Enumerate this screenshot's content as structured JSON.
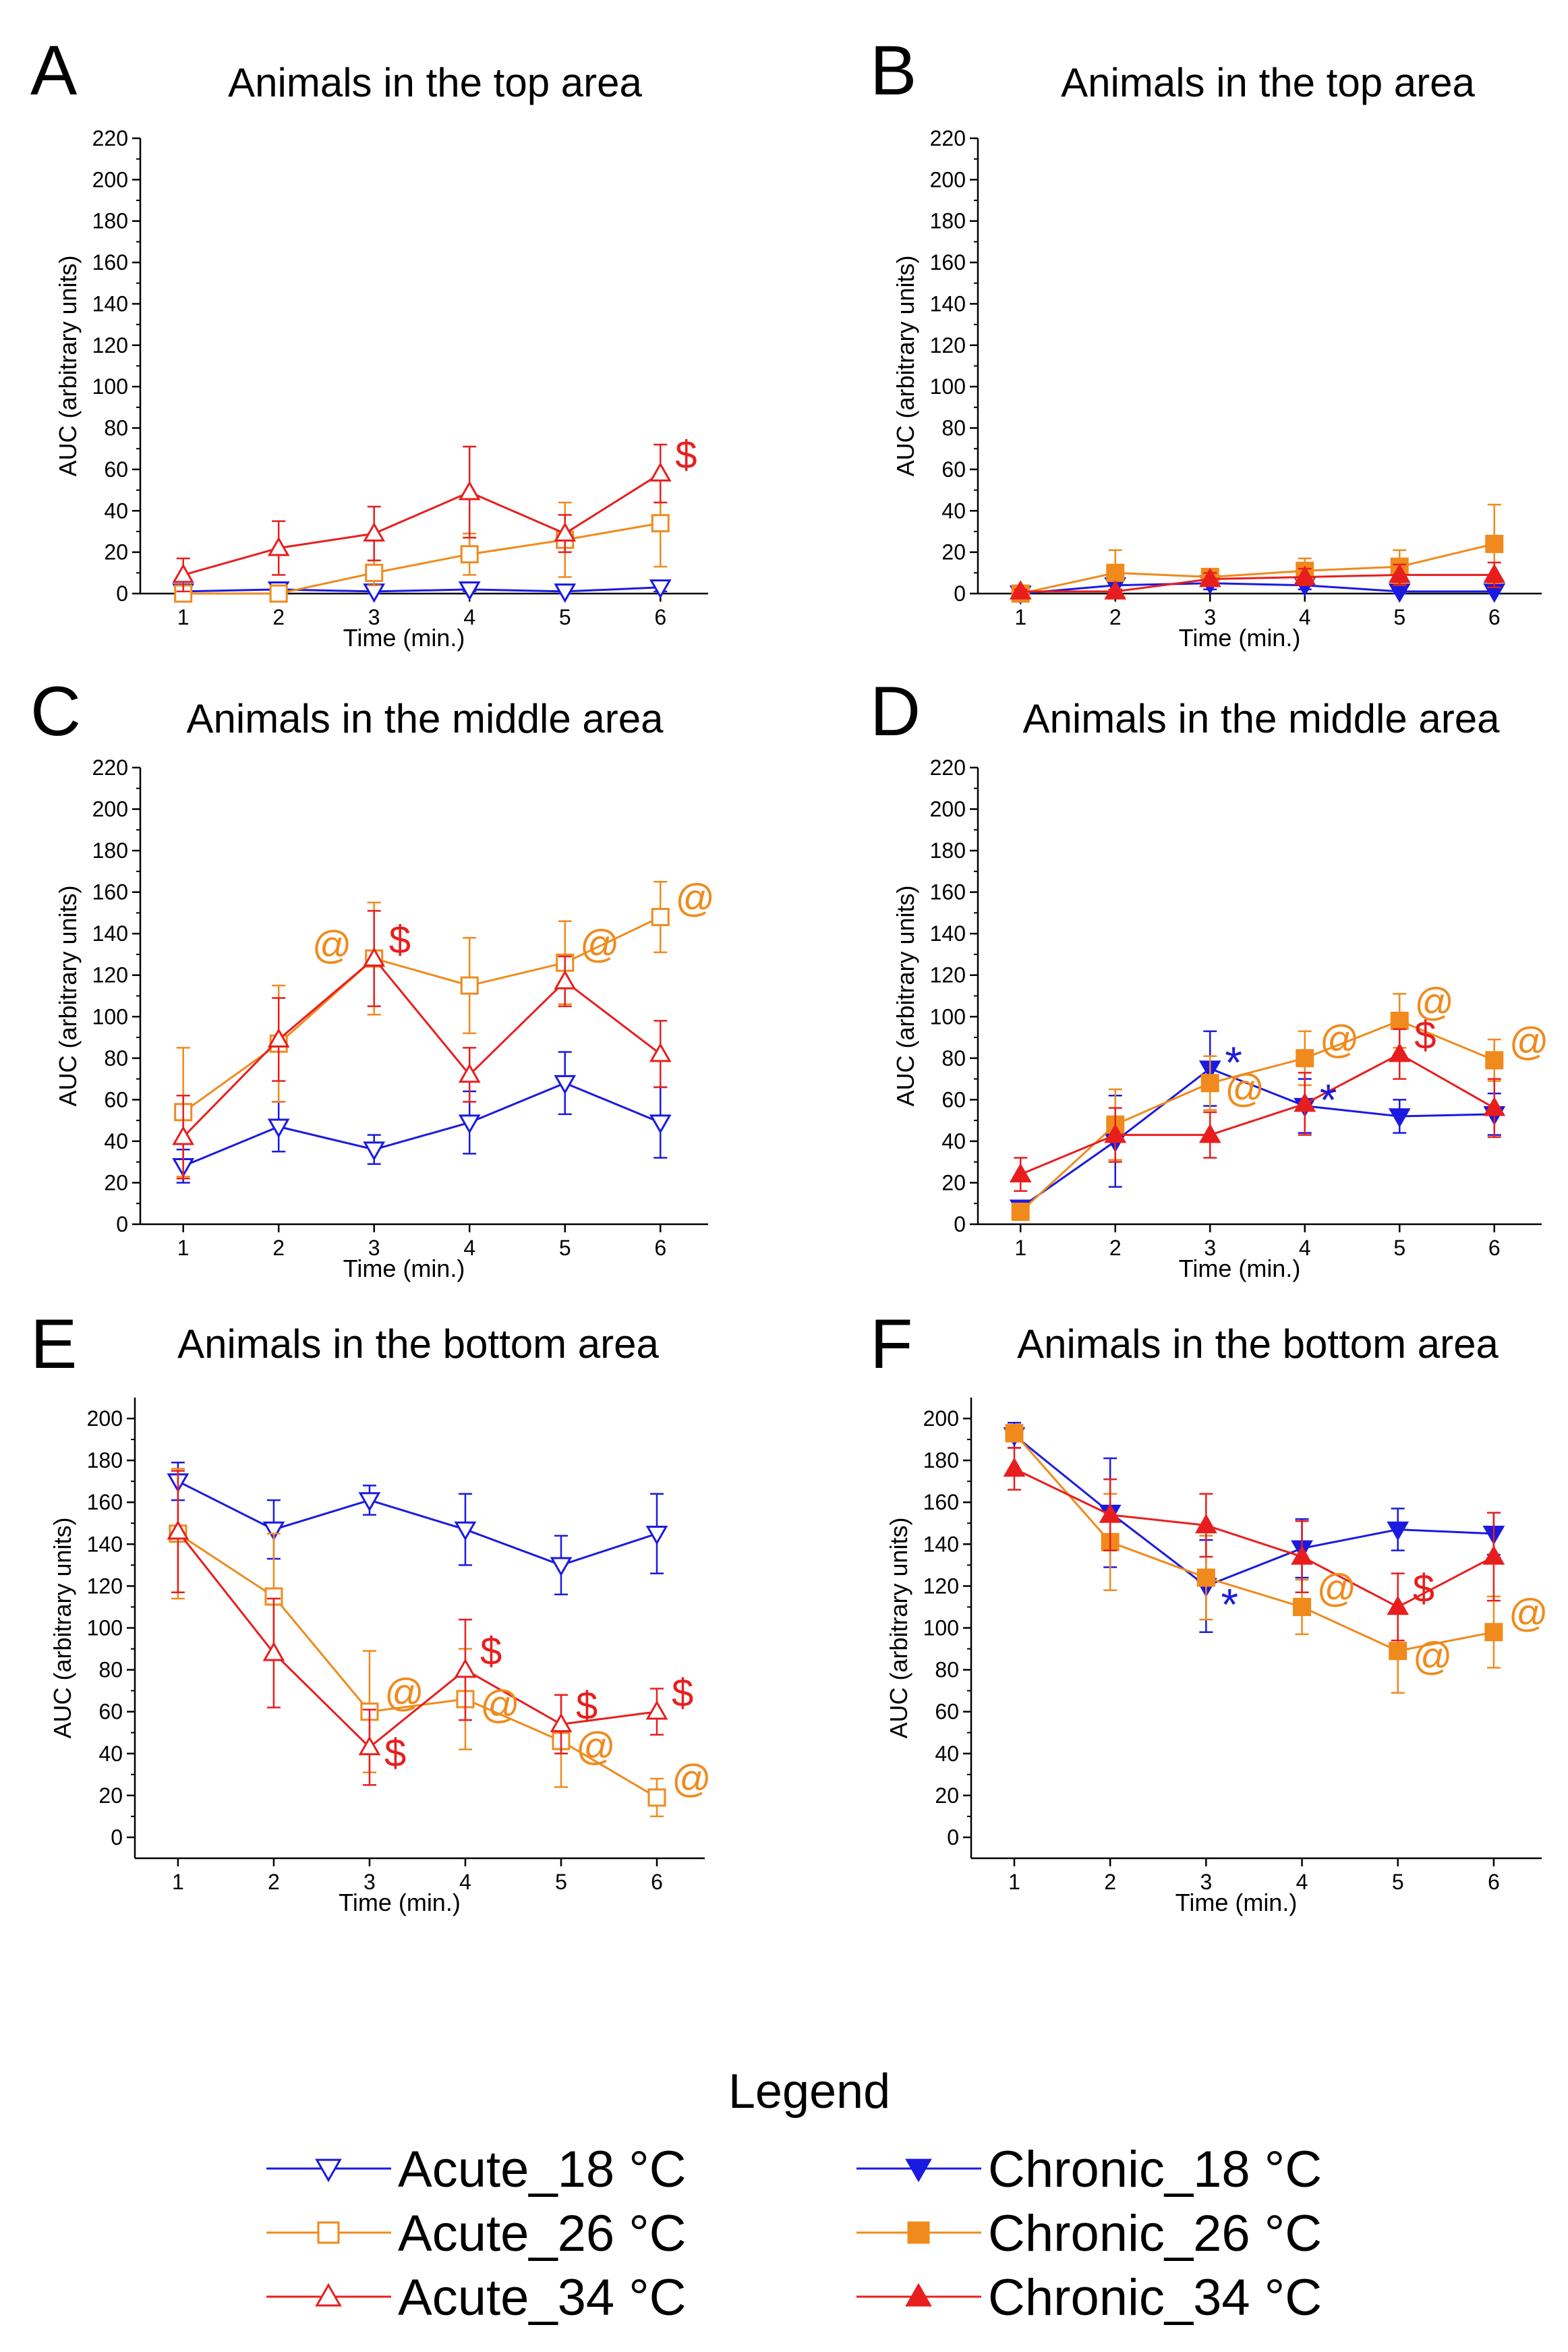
{
  "colors": {
    "18C": "#1a1ae0",
    "26C": "#f08a1c",
    "34C": "#e81e1e"
  },
  "legend": {
    "title": "Legend",
    "items": [
      {
        "label": "Acute_18 °C",
        "temp": "18C",
        "marker": "triangle-down",
        "filled": false
      },
      {
        "label": "Acute_26 °C",
        "temp": "26C",
        "marker": "square",
        "filled": false
      },
      {
        "label": "Acute_34 °C",
        "temp": "34C",
        "marker": "triangle-up",
        "filled": false
      },
      {
        "label": "Chronic_18 °C",
        "temp": "18C",
        "marker": "triangle-down",
        "filled": true
      },
      {
        "label": "Chronic_26 °C",
        "temp": "26C",
        "marker": "square",
        "filled": true
      },
      {
        "label": "Chronic_34 °C",
        "temp": "34C",
        "marker": "triangle-up",
        "filled": true
      }
    ]
  },
  "chart_data": [
    {
      "id": "A",
      "type": "line",
      "title": "Animals in the top area",
      "xlabel": "Time (min.)",
      "ylabel": "AUC (arbitrary units)",
      "x": [
        1,
        2,
        3,
        4,
        5,
        6
      ],
      "ylim": [
        0,
        220
      ],
      "yticks": [
        0,
        20,
        40,
        60,
        80,
        100,
        120,
        140,
        160,
        180,
        200,
        220
      ],
      "series": [
        {
          "name": "Acute_18 °C",
          "temp": "18C",
          "marker": "triangle-down",
          "filled": false,
          "values": [
            1,
            2,
            1,
            2,
            1,
            3
          ],
          "err": [
            1,
            1,
            1,
            1,
            1,
            2
          ]
        },
        {
          "name": "Acute_26 °C",
          "temp": "26C",
          "marker": "square",
          "filled": false,
          "values": [
            0,
            0,
            10,
            19,
            26,
            34
          ],
          "err": [
            1,
            1,
            6,
            10,
            18,
            21
          ]
        },
        {
          "name": "Acute_34 °C",
          "temp": "34C",
          "marker": "triangle-up",
          "filled": false,
          "values": [
            9,
            22,
            29,
            49,
            29,
            58
          ],
          "err": [
            8,
            13,
            13,
            22,
            9,
            14
          ]
        }
      ],
      "annotations": [
        {
          "x": 6,
          "y": 58,
          "text": "$",
          "temp": "34C",
          "dir": "right"
        }
      ]
    },
    {
      "id": "B",
      "type": "line",
      "title": "Animals in the top area",
      "xlabel": "Time (min.)",
      "ylabel": "AUC (arbitrary units)",
      "x": [
        1,
        2,
        3,
        4,
        5,
        6
      ],
      "ylim": [
        0,
        220
      ],
      "yticks": [
        0,
        20,
        40,
        60,
        80,
        100,
        120,
        140,
        160,
        180,
        200,
        220
      ],
      "series": [
        {
          "name": "Chronic_18 °C",
          "temp": "18C",
          "marker": "triangle-down",
          "filled": true,
          "values": [
            0,
            4,
            5,
            4,
            1,
            1
          ],
          "err": [
            1,
            2,
            3,
            2,
            1,
            1
          ]
        },
        {
          "name": "Chronic_26 °C",
          "temp": "26C",
          "marker": "square",
          "filled": true,
          "values": [
            0,
            10,
            8,
            11,
            13,
            24
          ],
          "err": [
            1,
            11,
            4,
            6,
            8,
            19
          ]
        },
        {
          "name": "Chronic_34 °C",
          "temp": "34C",
          "marker": "triangle-up",
          "filled": true,
          "values": [
            1,
            1,
            7,
            8,
            9,
            9
          ],
          "err": [
            1,
            1,
            3,
            4,
            5,
            6
          ]
        }
      ],
      "annotations": []
    },
    {
      "id": "C",
      "type": "line",
      "title": "Animals in the middle area",
      "xlabel": "Time (min.)",
      "ylabel": "AUC (arbitrary units)",
      "x": [
        1,
        2,
        3,
        4,
        5,
        6
      ],
      "ylim": [
        0,
        220
      ],
      "yticks": [
        0,
        20,
        40,
        60,
        80,
        100,
        120,
        140,
        160,
        180,
        200,
        220
      ],
      "series": [
        {
          "name": "Acute_18 °C",
          "temp": "18C",
          "marker": "triangle-down",
          "filled": false,
          "values": [
            28,
            47,
            36,
            49,
            68,
            49
          ],
          "err": [
            8,
            12,
            7,
            15,
            15,
            17
          ]
        },
        {
          "name": "Acute_26 °C",
          "temp": "26C",
          "marker": "square",
          "filled": false,
          "values": [
            54,
            87,
            128,
            115,
            126,
            148
          ],
          "err": [
            31,
            28,
            27,
            23,
            20,
            17
          ]
        },
        {
          "name": "Acute_34 °C",
          "temp": "34C",
          "marker": "triangle-up",
          "filled": false,
          "values": [
            42,
            89,
            128,
            72,
            117,
            82
          ],
          "err": [
            20,
            20,
            23,
            13,
            12,
            16
          ]
        }
      ],
      "annotations": [
        {
          "x": 3,
          "y": 128,
          "text": "@",
          "temp": "26C",
          "dir": "left"
        },
        {
          "x": 3,
          "y": 128,
          "text": "$",
          "temp": "34C",
          "dir": "right"
        },
        {
          "x": 5,
          "y": 126,
          "text": "@",
          "temp": "26C",
          "dir": "right"
        },
        {
          "x": 6,
          "y": 148,
          "text": "@",
          "temp": "26C",
          "dir": "right"
        }
      ]
    },
    {
      "id": "D",
      "type": "line",
      "title": "Animals in the middle area",
      "xlabel": "Time (min.)",
      "ylabel": "AUC (arbitrary units)",
      "x": [
        1,
        2,
        3,
        4,
        5,
        6
      ],
      "ylim": [
        0,
        220
      ],
      "yticks": [
        0,
        20,
        40,
        60,
        80,
        100,
        120,
        140,
        160,
        180,
        200,
        220
      ],
      "series": [
        {
          "name": "Chronic_18 °C",
          "temp": "18C",
          "marker": "triangle-down",
          "filled": true,
          "values": [
            8,
            40,
            75,
            57,
            52,
            53
          ],
          "err": [
            3,
            22,
            18,
            13,
            8,
            10
          ]
        },
        {
          "name": "Chronic_26 °C",
          "temp": "26C",
          "marker": "square",
          "filled": true,
          "values": [
            6,
            48,
            68,
            80,
            98,
            79
          ],
          "err": [
            4,
            17,
            13,
            13,
            13,
            10
          ]
        },
        {
          "name": "Chronic_34 °C",
          "temp": "34C",
          "marker": "triangle-up",
          "filled": true,
          "values": [
            24,
            43,
            43,
            58,
            82,
            56
          ],
          "err": [
            8,
            13,
            11,
            15,
            12,
            14
          ]
        }
      ],
      "annotations": [
        {
          "x": 3,
          "y": 75,
          "text": "*",
          "temp": "18C",
          "dir": "right"
        },
        {
          "x": 4,
          "y": 57,
          "text": "*",
          "temp": "18C",
          "dir": "right"
        },
        {
          "x": 3,
          "y": 68,
          "text": "@",
          "temp": "26C",
          "dir": "right-low"
        },
        {
          "x": 4,
          "y": 80,
          "text": "@",
          "temp": "26C",
          "dir": "right"
        },
        {
          "x": 5,
          "y": 98,
          "text": "@",
          "temp": "26C",
          "dir": "right"
        },
        {
          "x": 6,
          "y": 79,
          "text": "@",
          "temp": "26C",
          "dir": "right"
        },
        {
          "x": 5,
          "y": 82,
          "text": "$",
          "temp": "34C",
          "dir": "right"
        }
      ]
    },
    {
      "id": "E",
      "type": "line",
      "title": "Animals in the bottom area",
      "xlabel": "Time (min.)",
      "ylabel": "AUC (arbitrary units)",
      "x": [
        1,
        2,
        3,
        4,
        5,
        6
      ],
      "ylim": [
        -10,
        210
      ],
      "yticks": [
        0,
        20,
        40,
        60,
        80,
        100,
        120,
        140,
        160,
        180,
        200
      ],
      "series": [
        {
          "name": "Acute_18 °C",
          "temp": "18C",
          "marker": "triangle-down",
          "filled": false,
          "values": [
            170,
            147,
            161,
            147,
            130,
            145
          ],
          "err": [
            9,
            14,
            7,
            17,
            14,
            19
          ]
        },
        {
          "name": "Acute_26 °C",
          "temp": "26C",
          "marker": "square",
          "filled": false,
          "values": [
            145,
            115,
            60,
            66,
            46,
            19
          ],
          "err": [
            31,
            30,
            29,
            24,
            22,
            9
          ]
        },
        {
          "name": "Acute_34 °C",
          "temp": "34C",
          "marker": "triangle-up",
          "filled": false,
          "values": [
            146,
            88,
            43,
            80,
            54,
            60
          ],
          "err": [
            29,
            26,
            18,
            24,
            14,
            11
          ]
        }
      ],
      "annotations": [
        {
          "x": 3,
          "y": 60,
          "text": "@",
          "temp": "26C",
          "dir": "right"
        },
        {
          "x": 3,
          "y": 43,
          "text": "$",
          "temp": "34C",
          "dir": "right-low"
        },
        {
          "x": 4,
          "y": 80,
          "text": "$",
          "temp": "34C",
          "dir": "right"
        },
        {
          "x": 4,
          "y": 66,
          "text": "@",
          "temp": "26C",
          "dir": "right-low"
        },
        {
          "x": 5,
          "y": 54,
          "text": "$",
          "temp": "34C",
          "dir": "right"
        },
        {
          "x": 5,
          "y": 46,
          "text": "@",
          "temp": "26C",
          "dir": "right-low"
        },
        {
          "x": 6,
          "y": 60,
          "text": "$",
          "temp": "34C",
          "dir": "right"
        },
        {
          "x": 6,
          "y": 19,
          "text": "@",
          "temp": "26C",
          "dir": "right"
        }
      ]
    },
    {
      "id": "F",
      "type": "line",
      "title": "Animals in the bottom area",
      "xlabel": "Time (min.)",
      "ylabel": "AUC (arbitrary units)",
      "x": [
        1,
        2,
        3,
        4,
        5,
        6
      ],
      "ylim": [
        -10,
        210
      ],
      "yticks": [
        0,
        20,
        40,
        60,
        80,
        100,
        120,
        140,
        160,
        180,
        200
      ],
      "series": [
        {
          "name": "Chronic_18 °C",
          "temp": "18C",
          "marker": "triangle-down",
          "filled": true,
          "values": [
            192,
            155,
            120,
            138,
            147,
            145
          ],
          "err": [
            6,
            26,
            22,
            14,
            10,
            10
          ]
        },
        {
          "name": "Chronic_26 °C",
          "temp": "26C",
          "marker": "square",
          "filled": true,
          "values": [
            193,
            141,
            124,
            110,
            89,
            98
          ],
          "err": [
            4,
            23,
            20,
            13,
            20,
            17
          ]
        },
        {
          "name": "Chronic_34 °C",
          "temp": "34C",
          "marker": "triangle-up",
          "filled": true,
          "values": [
            176,
            154,
            149,
            134,
            110,
            134
          ],
          "err": [
            10,
            17,
            15,
            17,
            16,
            21
          ]
        }
      ],
      "annotations": [
        {
          "x": 3,
          "y": 120,
          "text": "*",
          "temp": "18C",
          "dir": "right-low"
        },
        {
          "x": 4,
          "y": 110,
          "text": "@",
          "temp": "26C",
          "dir": "right"
        },
        {
          "x": 5,
          "y": 89,
          "text": "@",
          "temp": "26C",
          "dir": "right-low"
        },
        {
          "x": 5,
          "y": 110,
          "text": "$",
          "temp": "34C",
          "dir": "right"
        },
        {
          "x": 6,
          "y": 98,
          "text": "@",
          "temp": "26C",
          "dir": "right"
        }
      ]
    }
  ]
}
